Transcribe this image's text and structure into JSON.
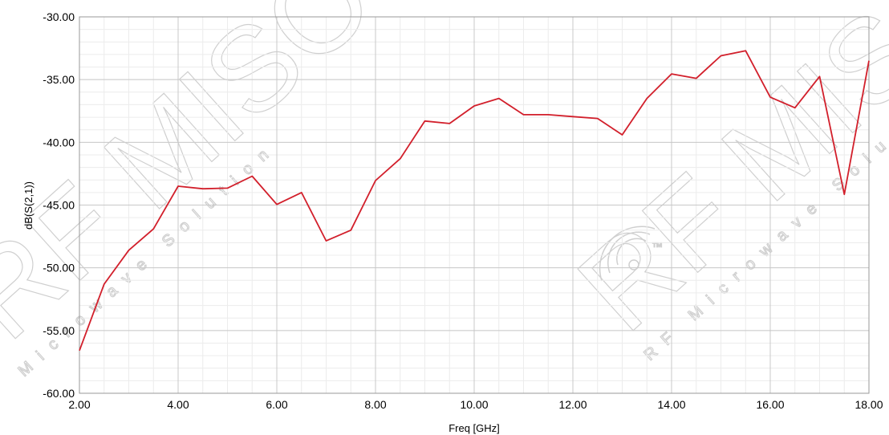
{
  "chart_data": {
    "type": "line",
    "xlabel": "Freq [GHz]",
    "ylabel": "dB(S(2,1))",
    "xlim": [
      2.0,
      18.0
    ],
    "ylim": [
      -60.0,
      -30.0
    ],
    "x_ticks": [
      "2.00",
      "4.00",
      "6.00",
      "8.00",
      "10.00",
      "12.00",
      "14.00",
      "16.00",
      "18.00"
    ],
    "y_ticks": [
      "-30.00",
      "-35.00",
      "-40.00",
      "-45.00",
      "-50.00",
      "-55.00",
      "-60.00"
    ],
    "grid": true,
    "series": [
      {
        "color": "#d21f2b",
        "x": [
          2.0,
          2.5,
          3.0,
          3.5,
          4.0,
          4.5,
          5.0,
          5.5,
          6.0,
          6.5,
          7.0,
          7.5,
          8.0,
          8.5,
          9.0,
          9.5,
          10.0,
          10.5,
          11.0,
          11.5,
          12.0,
          12.5,
          13.0,
          13.5,
          14.0,
          14.5,
          15.0,
          15.5,
          16.0,
          16.5,
          17.0,
          17.5,
          18.0
        ],
        "y": [
          -56.6,
          -51.3,
          -48.6,
          -46.9,
          -43.5,
          -43.7,
          -43.65,
          -42.7,
          -44.95,
          -44.0,
          -47.85,
          -47.0,
          -43.05,
          -41.3,
          -38.3,
          -38.5,
          -37.1,
          -36.5,
          -37.8,
          -37.8,
          -37.95,
          -38.1,
          -39.4,
          -36.5,
          -34.55,
          -34.9,
          -33.1,
          -32.7,
          -36.4,
          -37.25,
          -34.75,
          -44.15,
          -33.5
        ]
      }
    ]
  },
  "watermark": {
    "text_left": "RF MISO",
    "text_right": "RF MISO",
    "sub_left": "Microwave Solution",
    "sub_right": "RF Microwave Solution",
    "tm": "™",
    "color": "#cfcfcf"
  }
}
